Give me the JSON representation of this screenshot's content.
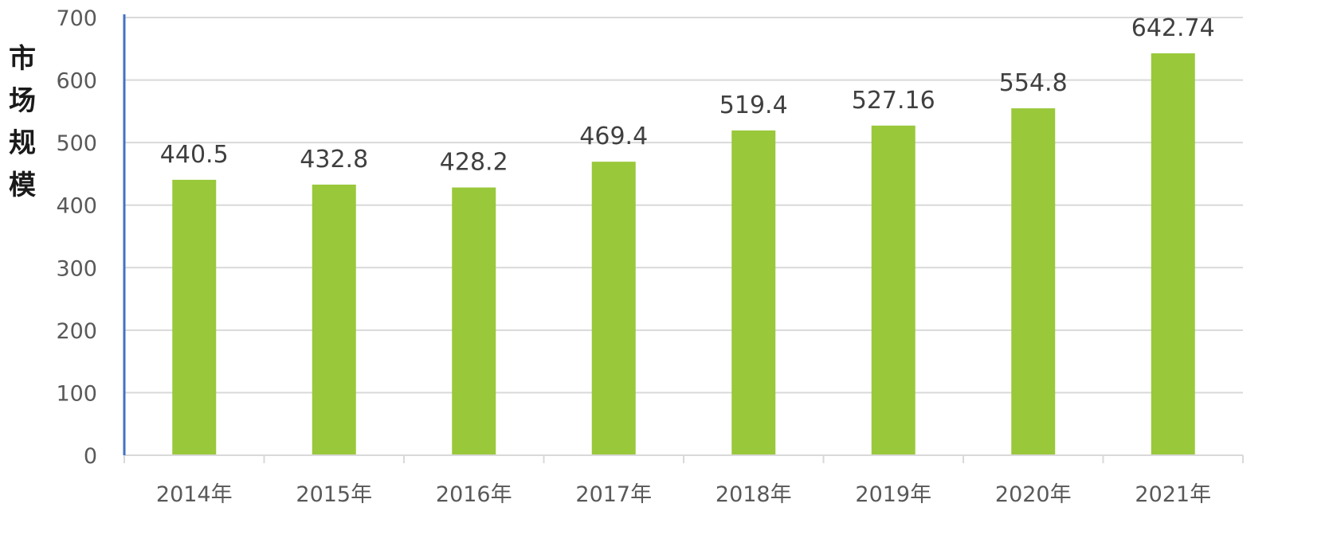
{
  "chart_data": {
    "type": "bar",
    "title": "",
    "xlabel": "",
    "ylabel": "市场规模",
    "categories": [
      "2014年",
      "2015年",
      "2016年",
      "2017年",
      "2018年",
      "2019年",
      "2020年",
      "2021年"
    ],
    "values": [
      440.5,
      432.8,
      428.2,
      469.4,
      519.4,
      527.16,
      554.8,
      642.74
    ],
    "data_labels": [
      "440.5",
      "432.8",
      "428.2",
      "469.4",
      "519.4",
      "527.16",
      "554.8",
      "642.74"
    ],
    "y_ticks": [
      0,
      100,
      200,
      300,
      400,
      500,
      600,
      700
    ],
    "ylim": [
      0,
      700
    ],
    "grid": true,
    "legend": "none",
    "colors": {
      "bar": "#99c83b",
      "gridline": "#d9d9d9",
      "y_axis": "#4472c4",
      "x_axis": "#d9d9d9"
    }
  }
}
